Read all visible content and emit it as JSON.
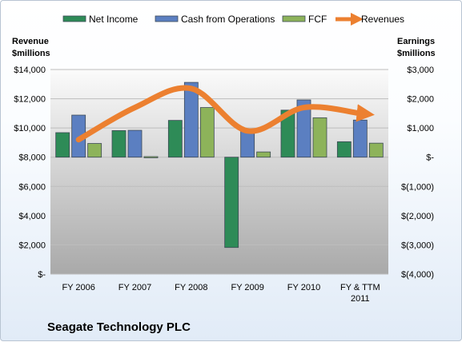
{
  "chart_data": {
    "type": "bar",
    "title": "Seagate Technology PLC",
    "categories": [
      [
        "FY 2006"
      ],
      [
        "FY 2007"
      ],
      [
        "FY 2008"
      ],
      [
        "FY 2009"
      ],
      [
        "FY 2010"
      ],
      [
        "FY & TTM",
        "2011"
      ]
    ],
    "left_axis": {
      "label_lines": [
        "Revenue",
        "$millions"
      ],
      "range": [
        0,
        14000
      ],
      "ticks": [
        "$-",
        "$2,000",
        "$4,000",
        "$6,000",
        "$8,000",
        "$10,000",
        "$12,000",
        "$14,000"
      ]
    },
    "right_axis": {
      "label_lines": [
        "Earnings",
        "$millions"
      ],
      "range": [
        -4000,
        3000
      ],
      "ticks": [
        "$(4,000)",
        "$(3,000)",
        "$(2,000)",
        "$(1,000)",
        "$-",
        "$1,000",
        "$2,000",
        "$3,000"
      ]
    },
    "series": [
      {
        "name": "Net Income",
        "type": "bar",
        "axis": "right",
        "color": "#2e8b57",
        "values": [
          840,
          910,
          1260,
          -3090,
          1610,
          530
        ]
      },
      {
        "name": "Cash from Operations",
        "type": "bar",
        "axis": "right",
        "color": "#5b7fc1",
        "values": [
          1440,
          920,
          2560,
          930,
          1960,
          1270
        ]
      },
      {
        "name": "FCF",
        "type": "bar",
        "axis": "right",
        "color": "#8db35a",
        "values": [
          470,
          20,
          1700,
          180,
          1350,
          480
        ]
      },
      {
        "name": "Revenues",
        "type": "line",
        "axis": "left",
        "color": "#ec8030",
        "values": [
          9200,
          11400,
          12700,
          9800,
          11400,
          11000
        ]
      }
    ],
    "grid": true,
    "legend_position": "top"
  }
}
